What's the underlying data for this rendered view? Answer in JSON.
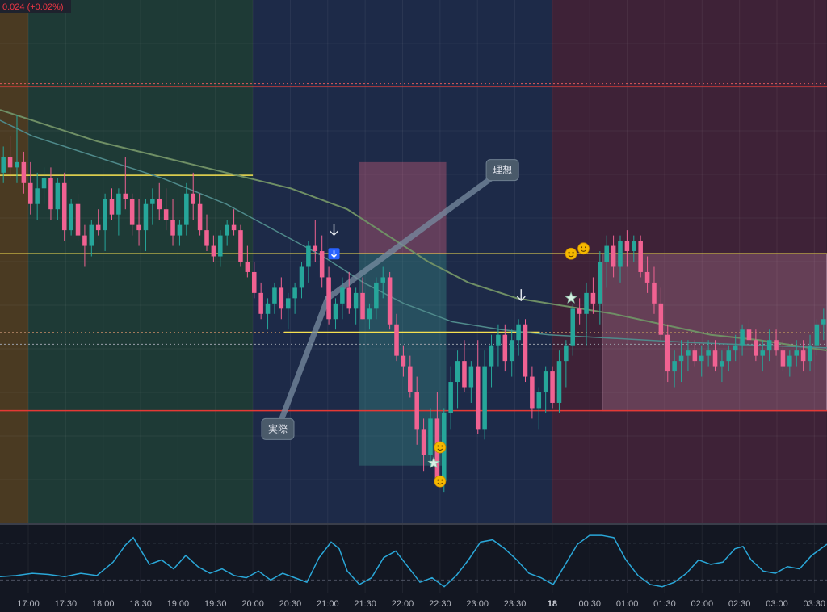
{
  "header": {
    "change_text": "0.024 (+0.02%)"
  },
  "chart_data": {
    "type": "candlestick",
    "title": "",
    "x_ticks": [
      "17:00",
      "17:30",
      "18:00",
      "18:30",
      "19:00",
      "19:30",
      "20:00",
      "20:30",
      "21:00",
      "21:30",
      "22:00",
      "22:30",
      "23:00",
      "23:30",
      "18",
      "00:30",
      "01:00",
      "01:30",
      "02:00",
      "02:30",
      "03:00",
      "03:30"
    ],
    "bold_ticks": [
      "18"
    ],
    "ylim": [
      0,
      100
    ],
    "series_colors": {
      "up": "#26a69a",
      "down": "#f06292",
      "ma_slow": "#6f8f65",
      "ma_fast": "#4f8a8b",
      "oscillator": "#2aa7d8"
    },
    "sessions": [
      {
        "from": "16:45",
        "to": "17:00",
        "color": "#4a3a22"
      },
      {
        "from": "17:00",
        "to": "20:00",
        "color": "#1e3a36"
      },
      {
        "from": "20:00",
        "to": "00:00",
        "color": "#1d2a48"
      },
      {
        "from": "00:00",
        "to": "03:40",
        "color": "#3e2237"
      }
    ],
    "hlines": [
      {
        "y": 83.5,
        "color": "#e53935",
        "style": "solid"
      },
      {
        "y": 84.0,
        "color": "#e05a5a",
        "style": "dotted"
      },
      {
        "y": 51.5,
        "color": "#f5e050",
        "style": "solid"
      },
      {
        "y": 21.5,
        "color": "#e53935",
        "style": "solid"
      },
      {
        "y": 36.5,
        "color": "#a0785a",
        "style": "dotted"
      },
      {
        "y": 34.2,
        "color": "#9aa0aa",
        "style": "dotted"
      }
    ],
    "segments": [
      {
        "x1": "16:45",
        "x2": "20:00",
        "y": 66.5,
        "color": "#f5e050"
      },
      {
        "x1": "20:25",
        "x2": "23:50",
        "y": 36.5,
        "color": "#f5e050"
      }
    ],
    "range_box": {
      "x1": "00:40",
      "x2": "03:40",
      "y1": 51.5,
      "y2": 21.5
    },
    "ideal_box": {
      "x1": "21:25",
      "x2": "22:35",
      "top": 69.0,
      "mid": 51.5,
      "bottom": 11.0
    },
    "callouts": [
      {
        "label": "理想",
        "anchor_time": "21:00",
        "anchor_y": 43.0,
        "box_time": "23:20",
        "box_y": 67.5
      },
      {
        "label": "実際",
        "anchor_time": "21:00",
        "anchor_y": 43.0,
        "box_time": "20:20",
        "box_y": 18.0
      }
    ],
    "markers": [
      {
        "time": "21:05",
        "y": 56.0,
        "kind": "arrow-down"
      },
      {
        "time": "21:05",
        "y": 51.5,
        "kind": "badge-down"
      },
      {
        "time": "23:35",
        "y": 43.5,
        "kind": "arrow-down"
      },
      {
        "time": "22:30",
        "y": 14.5,
        "kind": "emoji"
      },
      {
        "time": "22:30",
        "y": 8.0,
        "kind": "emoji"
      },
      {
        "time": "22:25",
        "y": 11.5,
        "kind": "star"
      },
      {
        "time": "00:15",
        "y": 51.5,
        "kind": "emoji"
      },
      {
        "time": "00:15",
        "y": 43.0,
        "kind": "star"
      },
      {
        "time": "00:25",
        "y": 52.5,
        "kind": "emoji"
      }
    ],
    "candles": [
      [
        67,
        72,
        65,
        70
      ],
      [
        70,
        74,
        66,
        68
      ],
      [
        68,
        78,
        65,
        69
      ],
      [
        69,
        71,
        63,
        65
      ],
      [
        65,
        69,
        59,
        61
      ],
      [
        61,
        67,
        58,
        64
      ],
      [
        64,
        68,
        61,
        66
      ],
      [
        66,
        68,
        58,
        60
      ],
      [
        60,
        66,
        58,
        65
      ],
      [
        65,
        67,
        54,
        56
      ],
      [
        56,
        62,
        55,
        61
      ],
      [
        61,
        63,
        54,
        55
      ],
      [
        55,
        57,
        49,
        53
      ],
      [
        53,
        58,
        51,
        57
      ],
      [
        57,
        60,
        55,
        56
      ],
      [
        56,
        63,
        52,
        62
      ],
      [
        62,
        64,
        58,
        59
      ],
      [
        59,
        64,
        55,
        63
      ],
      [
        63,
        70,
        60,
        62
      ],
      [
        62,
        63,
        55,
        57
      ],
      [
        57,
        62,
        53,
        56
      ],
      [
        56,
        62,
        52,
        61
      ],
      [
        61,
        64,
        57,
        62
      ],
      [
        62,
        65,
        58,
        60
      ],
      [
        60,
        64,
        56,
        58
      ],
      [
        58,
        62,
        53,
        55
      ],
      [
        55,
        58,
        53,
        57
      ],
      [
        57,
        65,
        55,
        63
      ],
      [
        63,
        67,
        58,
        61
      ],
      [
        61,
        63,
        55,
        56
      ],
      [
        56,
        59,
        52,
        53
      ],
      [
        53,
        55,
        50,
        51
      ],
      [
        51,
        56,
        49,
        55
      ],
      [
        55,
        58,
        53,
        57
      ],
      [
        57,
        60,
        55,
        56
      ],
      [
        56,
        57,
        49,
        50
      ],
      [
        50,
        53,
        47,
        48
      ],
      [
        48,
        50,
        43,
        44
      ],
      [
        44,
        46,
        39,
        40
      ],
      [
        40,
        43,
        37,
        42
      ],
      [
        42,
        46,
        40,
        45
      ],
      [
        45,
        47,
        39,
        41
      ],
      [
        41,
        44,
        37,
        43
      ],
      [
        43,
        46,
        40,
        45
      ],
      [
        45,
        50,
        43,
        49
      ],
      [
        49,
        54,
        46,
        53
      ],
      [
        53,
        58,
        50,
        52
      ],
      [
        52,
        55,
        45,
        47
      ],
      [
        47,
        49,
        38,
        39
      ],
      [
        39,
        43,
        37,
        42
      ],
      [
        42,
        47,
        39,
        45
      ],
      [
        45,
        48,
        40,
        41
      ],
      [
        41,
        45,
        38,
        44
      ],
      [
        44,
        47,
        39,
        39
      ],
      [
        39,
        42,
        37,
        41
      ],
      [
        41,
        47,
        39,
        46
      ],
      [
        46,
        49,
        43,
        47
      ],
      [
        47,
        48,
        37,
        38
      ],
      [
        38,
        40,
        31,
        32
      ],
      [
        32,
        34,
        28,
        30
      ],
      [
        30,
        32,
        24,
        25
      ],
      [
        25,
        28,
        15,
        18
      ],
      [
        18,
        20,
        10,
        13
      ],
      [
        13,
        22,
        11,
        20
      ],
      [
        20,
        25,
        7,
        8
      ],
      [
        8,
        22,
        6,
        21
      ],
      [
        21,
        30,
        18,
        27
      ],
      [
        27,
        33,
        22,
        31
      ],
      [
        31,
        35,
        25,
        26
      ],
      [
        26,
        31,
        23,
        30
      ],
      [
        30,
        35,
        17,
        18
      ],
      [
        18,
        33,
        16,
        30
      ],
      [
        30,
        36,
        26,
        34
      ],
      [
        34,
        38,
        30,
        36
      ],
      [
        36,
        38,
        29,
        31
      ],
      [
        31,
        37,
        28,
        35
      ],
      [
        35,
        39,
        32,
        38
      ],
      [
        38,
        39,
        27,
        28
      ],
      [
        28,
        30,
        20,
        22
      ],
      [
        22,
        26,
        18,
        25
      ],
      [
        25,
        30,
        21,
        29
      ],
      [
        29,
        30,
        22,
        23
      ],
      [
        23,
        33,
        21,
        31
      ],
      [
        31,
        35,
        26,
        34
      ],
      [
        34,
        42,
        32,
        41
      ],
      [
        41,
        43,
        38,
        40
      ],
      [
        40,
        46,
        34,
        44
      ],
      [
        44,
        47,
        40,
        42
      ],
      [
        42,
        52,
        38,
        50
      ],
      [
        50,
        55,
        45,
        53
      ],
      [
        53,
        55,
        47,
        49
      ],
      [
        49,
        55,
        46,
        54
      ],
      [
        54,
        56,
        49,
        52
      ],
      [
        52,
        55,
        50,
        54
      ],
      [
        54,
        55,
        47,
        48
      ],
      [
        48,
        51,
        44,
        46
      ],
      [
        46,
        49,
        40,
        42
      ],
      [
        42,
        45,
        35,
        36
      ],
      [
        36,
        38,
        27,
        29
      ],
      [
        29,
        33,
        26,
        31
      ],
      [
        31,
        35,
        27,
        32
      ],
      [
        32,
        35,
        29,
        33
      ],
      [
        33,
        35,
        30,
        31
      ],
      [
        31,
        34,
        28,
        32
      ],
      [
        32,
        35,
        30,
        33
      ],
      [
        33,
        35,
        29,
        30
      ],
      [
        30,
        33,
        27,
        31
      ],
      [
        31,
        34,
        29,
        33
      ],
      [
        33,
        36,
        31,
        34
      ],
      [
        34,
        38,
        32,
        37
      ],
      [
        37,
        39,
        34,
        35
      ],
      [
        35,
        37,
        31,
        32
      ],
      [
        32,
        35,
        29,
        33
      ],
      [
        33,
        37,
        31,
        35
      ],
      [
        35,
        37,
        32,
        33
      ],
      [
        33,
        35,
        29,
        30
      ],
      [
        30,
        33,
        28,
        32
      ],
      [
        32,
        35,
        30,
        33
      ],
      [
        33,
        35,
        29,
        31
      ],
      [
        31,
        36,
        29,
        34
      ],
      [
        34,
        39,
        32,
        38
      ],
      [
        38,
        41,
        35,
        39
      ]
    ],
    "ma_slow": [
      [
        0,
        79
      ],
      [
        40,
        77
      ],
      [
        120,
        73
      ],
      [
        200,
        70
      ],
      [
        280,
        67
      ],
      [
        360,
        64
      ],
      [
        430,
        60
      ],
      [
        480,
        55
      ],
      [
        530,
        50
      ],
      [
        580,
        46
      ],
      [
        640,
        43
      ],
      [
        700,
        41.5
      ],
      [
        760,
        40
      ],
      [
        820,
        38
      ],
      [
        880,
        36
      ],
      [
        940,
        35
      ],
      [
        1024,
        33
      ]
    ],
    "ma_fast": [
      [
        0,
        77
      ],
      [
        40,
        74
      ],
      [
        120,
        70
      ],
      [
        200,
        66
      ],
      [
        280,
        61
      ],
      [
        340,
        56
      ],
      [
        400,
        51
      ],
      [
        450,
        46
      ],
      [
        500,
        42
      ],
      [
        560,
        38.5
      ],
      [
        620,
        37
      ],
      [
        680,
        36
      ],
      [
        740,
        35.5
      ],
      [
        800,
        35
      ],
      [
        860,
        34.5
      ],
      [
        940,
        34
      ],
      [
        1024,
        33.5
      ]
    ],
    "oscillator": [
      [
        0,
        15
      ],
      [
        20,
        16
      ],
      [
        40,
        18
      ],
      [
        60,
        17
      ],
      [
        80,
        15
      ],
      [
        100,
        18
      ],
      [
        120,
        16
      ],
      [
        140,
        28
      ],
      [
        155,
        43
      ],
      [
        165,
        50
      ],
      [
        175,
        38
      ],
      [
        185,
        26
      ],
      [
        200,
        30
      ],
      [
        215,
        22
      ],
      [
        230,
        34
      ],
      [
        245,
        24
      ],
      [
        260,
        18
      ],
      [
        275,
        22
      ],
      [
        290,
        16
      ],
      [
        305,
        14
      ],
      [
        320,
        20
      ],
      [
        335,
        12
      ],
      [
        350,
        18
      ],
      [
        365,
        14
      ],
      [
        380,
        10
      ],
      [
        395,
        32
      ],
      [
        410,
        46
      ],
      [
        420,
        40
      ],
      [
        430,
        20
      ],
      [
        445,
        8
      ],
      [
        460,
        14
      ],
      [
        475,
        32
      ],
      [
        490,
        38
      ],
      [
        505,
        24
      ],
      [
        520,
        10
      ],
      [
        535,
        14
      ],
      [
        550,
        6
      ],
      [
        565,
        16
      ],
      [
        580,
        30
      ],
      [
        595,
        46
      ],
      [
        610,
        48
      ],
      [
        625,
        40
      ],
      [
        640,
        30
      ],
      [
        655,
        18
      ],
      [
        670,
        14
      ],
      [
        685,
        8
      ],
      [
        700,
        26
      ],
      [
        715,
        44
      ],
      [
        730,
        52
      ],
      [
        745,
        52
      ],
      [
        760,
        50
      ],
      [
        775,
        30
      ],
      [
        790,
        16
      ],
      [
        805,
        8
      ],
      [
        820,
        6
      ],
      [
        835,
        10
      ],
      [
        850,
        18
      ],
      [
        865,
        30
      ],
      [
        880,
        26
      ],
      [
        895,
        28
      ],
      [
        910,
        40
      ],
      [
        920,
        42
      ],
      [
        930,
        30
      ],
      [
        945,
        20
      ],
      [
        960,
        18
      ],
      [
        975,
        24
      ],
      [
        990,
        22
      ],
      [
        1005,
        34
      ],
      [
        1024,
        44
      ]
    ]
  }
}
